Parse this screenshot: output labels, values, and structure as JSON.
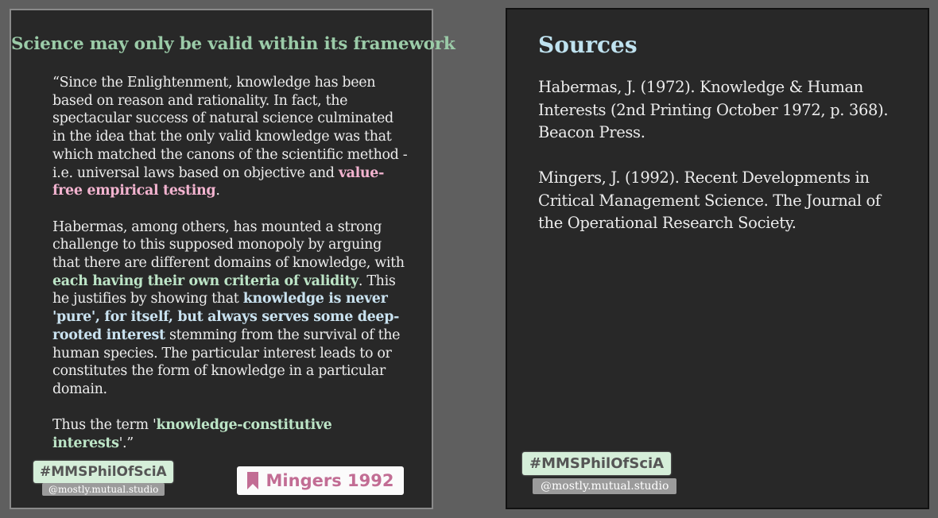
{
  "left_card": {
    "title": "Science may only be valid within its framework",
    "p1": {
      "text": "“Since the Enlightenment, knowledge has been based on reason and rationality. In fact, the spectacular success of natural science culminated in the idea that the only valid knowledge was that which matched the canons of the scientific method -i.e. universal laws based on objective and ",
      "hl": "value-free empirical testing",
      "end": "."
    },
    "p2": {
      "a": "Habermas, among others, has mounted a strong challenge to this supposed monopoly by arguing that there are different domains of knowledge, with ",
      "hl1": "each having their own criteria of validity",
      "b": ". This he justifies by showing that ",
      "hl2": "knowledge is never 'pure', for itself, but always serves some deep-rooted interest",
      "c": " stemming from the survival of the human species. The particular interest leads to or constitutes the form of knowledge in a particular domain."
    },
    "p3": {
      "a": "Thus the term '",
      "hl": "knowledge-constitutive interests",
      "b": "'.”"
    },
    "hashtag": "#MMSPhilOfSciA",
    "handle": "@mostly.mutual.studio",
    "citation": {
      "icon": "bookmark-icon",
      "label": "Mingers 1992"
    }
  },
  "right_card": {
    "title": "Sources",
    "sources": [
      "Habermas, J. (1972). Knowledge & Human Interests (2nd Printing October 1972, p. 368). Beacon Press.",
      "Mingers, J. (1992). Recent Developments in Critical Management Science. The Journal of the Operational Research Society."
    ],
    "hashtag": "#MMSPhilOfSciA",
    "handle": "@mostly.mutual.studio"
  },
  "colors": {
    "background": "#5f5f5f",
    "card": "#282828",
    "title_green": "#9bcba8",
    "title_blue": "#bfe2ef",
    "highlight_pink": "#f2b3cf",
    "highlight_green": "#bde5c7",
    "highlight_blue": "#c9e2f0",
    "citation_text": "#c26d94"
  }
}
